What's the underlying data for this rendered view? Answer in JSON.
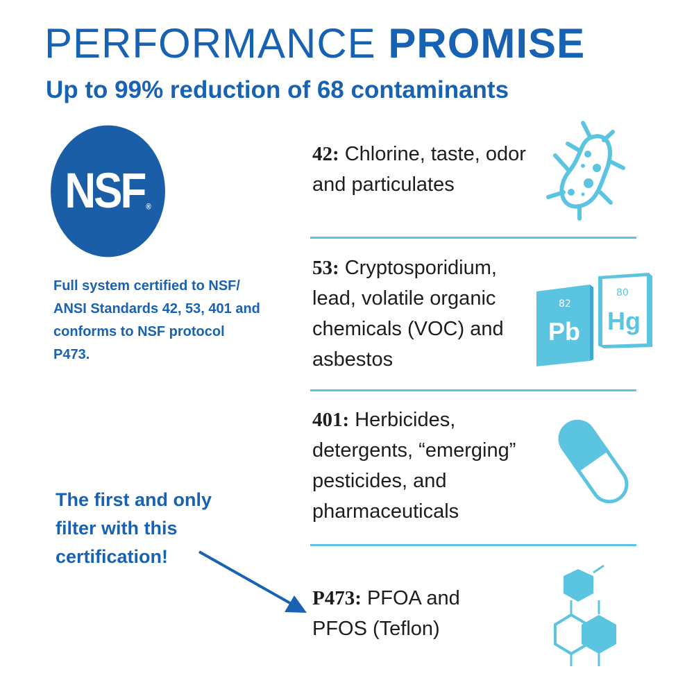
{
  "title": {
    "light": "PERFORMANCE",
    "bold": "PROMISE"
  },
  "subtitle": "Up to 99% reduction of 68 contaminants",
  "logo": {
    "text": "NSF",
    "mark": "®"
  },
  "certification_text": "Full system certified to NSF/ ANSI Standards 42, 53, 401 and conforms to NSF protocol P473.",
  "callout": "The first and only filter with this certification!",
  "standards": [
    {
      "code": "42:",
      "desc": "Chlorine, taste, odor and particulates",
      "icon": "bacteria-icon"
    },
    {
      "code": "53:",
      "desc": "Cryptosporidium, lead, volatile organic chemicals (VOC) and asbestos",
      "icon": "periodic-elements-icon"
    },
    {
      "code": "401:",
      "desc": "Herbicides, detergents, “emerging” pesticides, and pharmaceuticals",
      "icon": "pill-icon"
    },
    {
      "code": "P473:",
      "desc": "PFOA and PFOS (Teflon)",
      "icon": "molecule-icon"
    }
  ],
  "elements": [
    {
      "number": "82",
      "symbol": "Pb"
    },
    {
      "number": "80",
      "symbol": "Hg"
    }
  ],
  "colors": {
    "dark_blue": "#1862b4",
    "light_blue": "#5bc4e0"
  }
}
